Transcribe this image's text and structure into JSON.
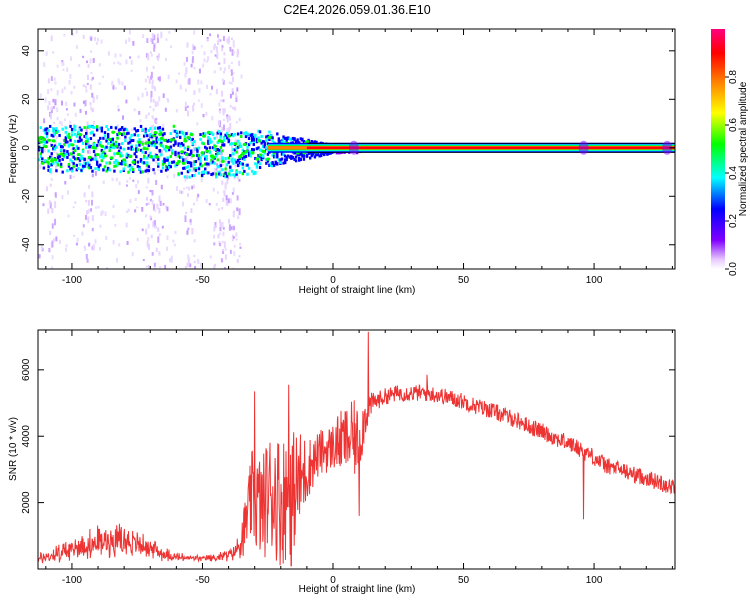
{
  "title": "C2E4.2026.059.01.36.E10",
  "colors": {
    "snr_line": "#ee3333",
    "frame": "#000000",
    "background": "#ffffff"
  },
  "chart_data": [
    {
      "type": "heatmap",
      "name": "spectrogram",
      "xlabel": "Height of straight line (km)",
      "ylabel": "Frequency (Hz)",
      "xlim": [
        -113,
        131
      ],
      "ylim": [
        -50,
        49
      ],
      "x_ticks": [
        -100,
        -50,
        0,
        50,
        100
      ],
      "x_tick_labels": [
        "-100",
        "-50",
        "0",
        "50",
        "100"
      ],
      "y_ticks": [
        -40,
        -20,
        0,
        20,
        40
      ],
      "y_tick_labels": [
        "-40",
        "-20",
        "0",
        "20",
        "40"
      ],
      "description_points": {
        "noisy_region_x": [
          -113,
          -35
        ],
        "noisy_band_halfwidth_hz": 8,
        "clean_line_start_km": -10,
        "line_frequency_hz": 0,
        "vertical_streaks_km": [
          -108,
          -94,
          -70,
          -68,
          -55,
          -44,
          -42,
          -38
        ]
      },
      "colorbar": {
        "label": "Normalized spectral amplitude",
        "range": [
          0,
          1
        ],
        "ticks": [
          0.0,
          0.2,
          0.4,
          0.6,
          0.8
        ],
        "tick_labels": [
          "0.0",
          "0.2",
          "0.4",
          "0.6",
          "0.8"
        ],
        "colormap": [
          "#ffffff",
          "#7f00ff",
          "#0000ff",
          "#00ffff",
          "#00ff00",
          "#ffff00",
          "#ff8000",
          "#ff0000",
          "#ff0080"
        ]
      }
    },
    {
      "type": "line",
      "name": "snr",
      "xlabel": "Height of straight line (km)",
      "ylabel": "SNR (10 * v/v)",
      "xlim": [
        -113,
        131
      ],
      "ylim": [
        0,
        7200
      ],
      "x_ticks": [
        -100,
        -50,
        0,
        50,
        100
      ],
      "x_tick_labels": [
        "-100",
        "-50",
        "0",
        "50",
        "100"
      ],
      "y_ticks": [
        2000,
        4000,
        6000
      ],
      "y_tick_labels": [
        "2000",
        "4000",
        "6000"
      ],
      "envelope": {
        "x": [
          -113,
          -105,
          -95,
          -85,
          -80,
          -75,
          -70,
          -65,
          -60,
          -55,
          -50,
          -45,
          -40,
          -36,
          -33,
          -31,
          -29,
          -27,
          -25,
          -22,
          -20,
          -18,
          -15,
          -12,
          -10,
          -8,
          -5,
          -2,
          0,
          2,
          5,
          8,
          10,
          12,
          13,
          15,
          20,
          25,
          30,
          35,
          40,
          45,
          50,
          55,
          60,
          65,
          70,
          75,
          80,
          85,
          90,
          95,
          96,
          98,
          100,
          105,
          110,
          115,
          120,
          125,
          131
        ],
        "mean": [
          300,
          450,
          700,
          900,
          850,
          750,
          650,
          450,
          350,
          330,
          320,
          340,
          420,
          650,
          1500,
          2200,
          2000,
          1800,
          2300,
          2300,
          2000,
          2200,
          2400,
          2700,
          3000,
          3200,
          3500,
          3600,
          3700,
          3800,
          3900,
          3900,
          3800,
          4500,
          4800,
          5000,
          5200,
          5300,
          5300,
          5300,
          5250,
          5150,
          5050,
          4900,
          4800,
          4650,
          4500,
          4300,
          4150,
          3950,
          3800,
          3600,
          3500,
          3500,
          3350,
          3100,
          3000,
          2850,
          2750,
          2600,
          2450
        ],
        "noise": [
          200,
          400,
          600,
          700,
          600,
          500,
          400,
          300,
          200,
          150,
          120,
          150,
          250,
          500,
          900,
          1400,
          1600,
          1600,
          1800,
          2000,
          2000,
          2000,
          1800,
          1500,
          1000,
          800,
          700,
          700,
          700,
          900,
          1000,
          1200,
          1000,
          700,
          600,
          300,
          250,
          250,
          250,
          250,
          250,
          250,
          250,
          250,
          250,
          250,
          250,
          250,
          250,
          250,
          250,
          250,
          250,
          250,
          250,
          250,
          250,
          250,
          250,
          250,
          250
        ]
      },
      "notable_points": [
        {
          "x": 13.5,
          "y": 7150
        },
        {
          "x": 10,
          "y": 1600
        },
        {
          "x": 96,
          "y": 1500
        },
        {
          "x": -16,
          "y": 100
        },
        {
          "x": -30,
          "y": 5350
        },
        {
          "x": -17,
          "y": 5550
        },
        {
          "x": 36,
          "y": 5850
        }
      ]
    }
  ]
}
